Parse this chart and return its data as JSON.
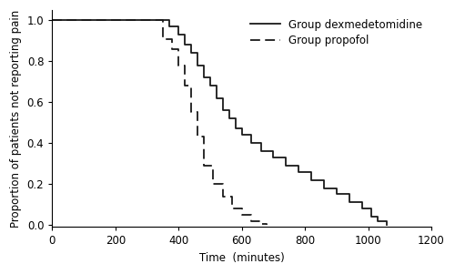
{
  "xlabel": "Time  (minutes)",
  "ylabel": "Proportion of patients not reporting pain",
  "xlim": [
    0,
    1200
  ],
  "ylim": [
    -0.01,
    1.05
  ],
  "xticks": [
    0,
    200,
    400,
    600,
    800,
    1000,
    1200
  ],
  "yticks": [
    0.0,
    0.2,
    0.4,
    0.6,
    0.8,
    1.0
  ],
  "dex_times": [
    0,
    350,
    370,
    400,
    420,
    440,
    460,
    480,
    500,
    520,
    540,
    560,
    580,
    600,
    630,
    660,
    700,
    740,
    780,
    820,
    860,
    900,
    940,
    980,
    1010,
    1030,
    1060
  ],
  "dex_surv": [
    1.0,
    1.0,
    0.97,
    0.93,
    0.88,
    0.84,
    0.78,
    0.72,
    0.68,
    0.62,
    0.56,
    0.52,
    0.47,
    0.44,
    0.4,
    0.36,
    0.33,
    0.29,
    0.26,
    0.22,
    0.18,
    0.15,
    0.11,
    0.08,
    0.04,
    0.02,
    0.0
  ],
  "prop_times": [
    0,
    350,
    380,
    400,
    420,
    440,
    460,
    480,
    510,
    540,
    570,
    600,
    630,
    660,
    680
  ],
  "prop_surv": [
    1.0,
    0.91,
    0.86,
    0.78,
    0.68,
    0.55,
    0.43,
    0.29,
    0.2,
    0.14,
    0.08,
    0.05,
    0.02,
    0.005,
    0.0
  ],
  "line_color": "#1a1a1a",
  "bg_color": "#ffffff",
  "legend_solid": "Group dexmedetomidine",
  "legend_dashed": "Group propofol",
  "fontsize": 8.5,
  "legend_fontsize": 8.5,
  "linewidth": 1.3,
  "figwidth": 5.0,
  "figheight": 3.01,
  "dpi": 100
}
